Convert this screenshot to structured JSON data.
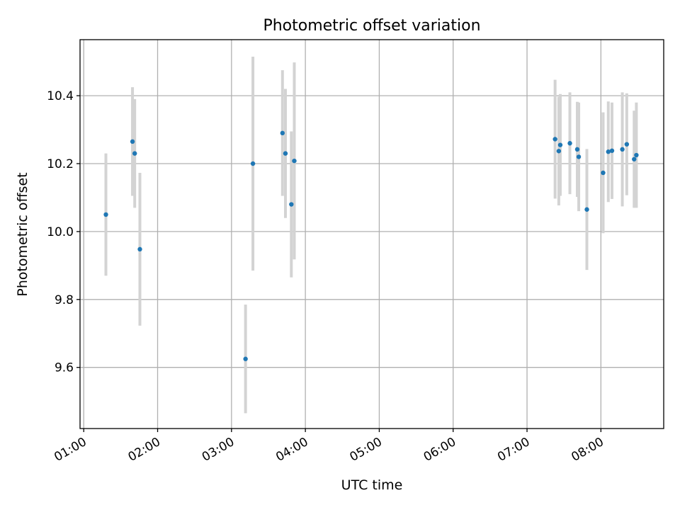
{
  "chart_data": {
    "type": "scatter",
    "title": "Photometric offset variation",
    "xlabel": "UTC time",
    "ylabel": "Photometric offset",
    "x_unit": "UTC hours",
    "xlim": [
      0.95,
      8.85
    ],
    "ylim": [
      9.42,
      10.565
    ],
    "x_ticks": [
      {
        "value": 1,
        "label": "01:00"
      },
      {
        "value": 2,
        "label": "02:00"
      },
      {
        "value": 3,
        "label": "03:00"
      },
      {
        "value": 4,
        "label": "04:00"
      },
      {
        "value": 5,
        "label": "05:00"
      },
      {
        "value": 6,
        "label": "06:00"
      },
      {
        "value": 7,
        "label": "07:00"
      },
      {
        "value": 8,
        "label": "08:00"
      }
    ],
    "y_ticks": [
      {
        "value": 9.6,
        "label": "9.6"
      },
      {
        "value": 9.8,
        "label": "9.8"
      },
      {
        "value": 10.0,
        "label": "10.0"
      },
      {
        "value": 10.2,
        "label": "10.2"
      },
      {
        "value": 10.4,
        "label": "10.4"
      }
    ],
    "grid": true,
    "colors": {
      "marker": "#1f77b4",
      "errorbar": "#d3d3d3",
      "grid": "#b0b0b0"
    },
    "points": [
      {
        "x": 1.3,
        "y": 10.05,
        "err": 0.18
      },
      {
        "x": 1.66,
        "y": 10.265,
        "err": 0.16
      },
      {
        "x": 1.69,
        "y": 10.23,
        "err": 0.16
      },
      {
        "x": 1.76,
        "y": 9.948,
        "err": 0.225
      },
      {
        "x": 3.19,
        "y": 9.625,
        "err": 0.16
      },
      {
        "x": 3.29,
        "y": 10.2,
        "err": 0.315
      },
      {
        "x": 3.69,
        "y": 10.29,
        "err": 0.185
      },
      {
        "x": 3.73,
        "y": 10.23,
        "err": 0.19
      },
      {
        "x": 3.81,
        "y": 10.08,
        "err": 0.215
      },
      {
        "x": 3.85,
        "y": 10.208,
        "err": 0.29
      },
      {
        "x": 7.38,
        "y": 10.272,
        "err": 0.175
      },
      {
        "x": 7.43,
        "y": 10.237,
        "err": 0.16
      },
      {
        "x": 7.45,
        "y": 10.255,
        "err": 0.15
      },
      {
        "x": 7.58,
        "y": 10.26,
        "err": 0.15
      },
      {
        "x": 7.68,
        "y": 10.242,
        "err": 0.14
      },
      {
        "x": 7.7,
        "y": 10.22,
        "err": 0.16
      },
      {
        "x": 7.81,
        "y": 10.065,
        "err": 0.178
      },
      {
        "x": 8.03,
        "y": 10.173,
        "err": 0.178
      },
      {
        "x": 8.1,
        "y": 10.235,
        "err": 0.148
      },
      {
        "x": 8.15,
        "y": 10.238,
        "err": 0.142
      },
      {
        "x": 8.29,
        "y": 10.242,
        "err": 0.168
      },
      {
        "x": 8.35,
        "y": 10.257,
        "err": 0.15
      },
      {
        "x": 8.45,
        "y": 10.213,
        "err": 0.143
      },
      {
        "x": 8.48,
        "y": 10.225,
        "err": 0.155
      }
    ]
  }
}
